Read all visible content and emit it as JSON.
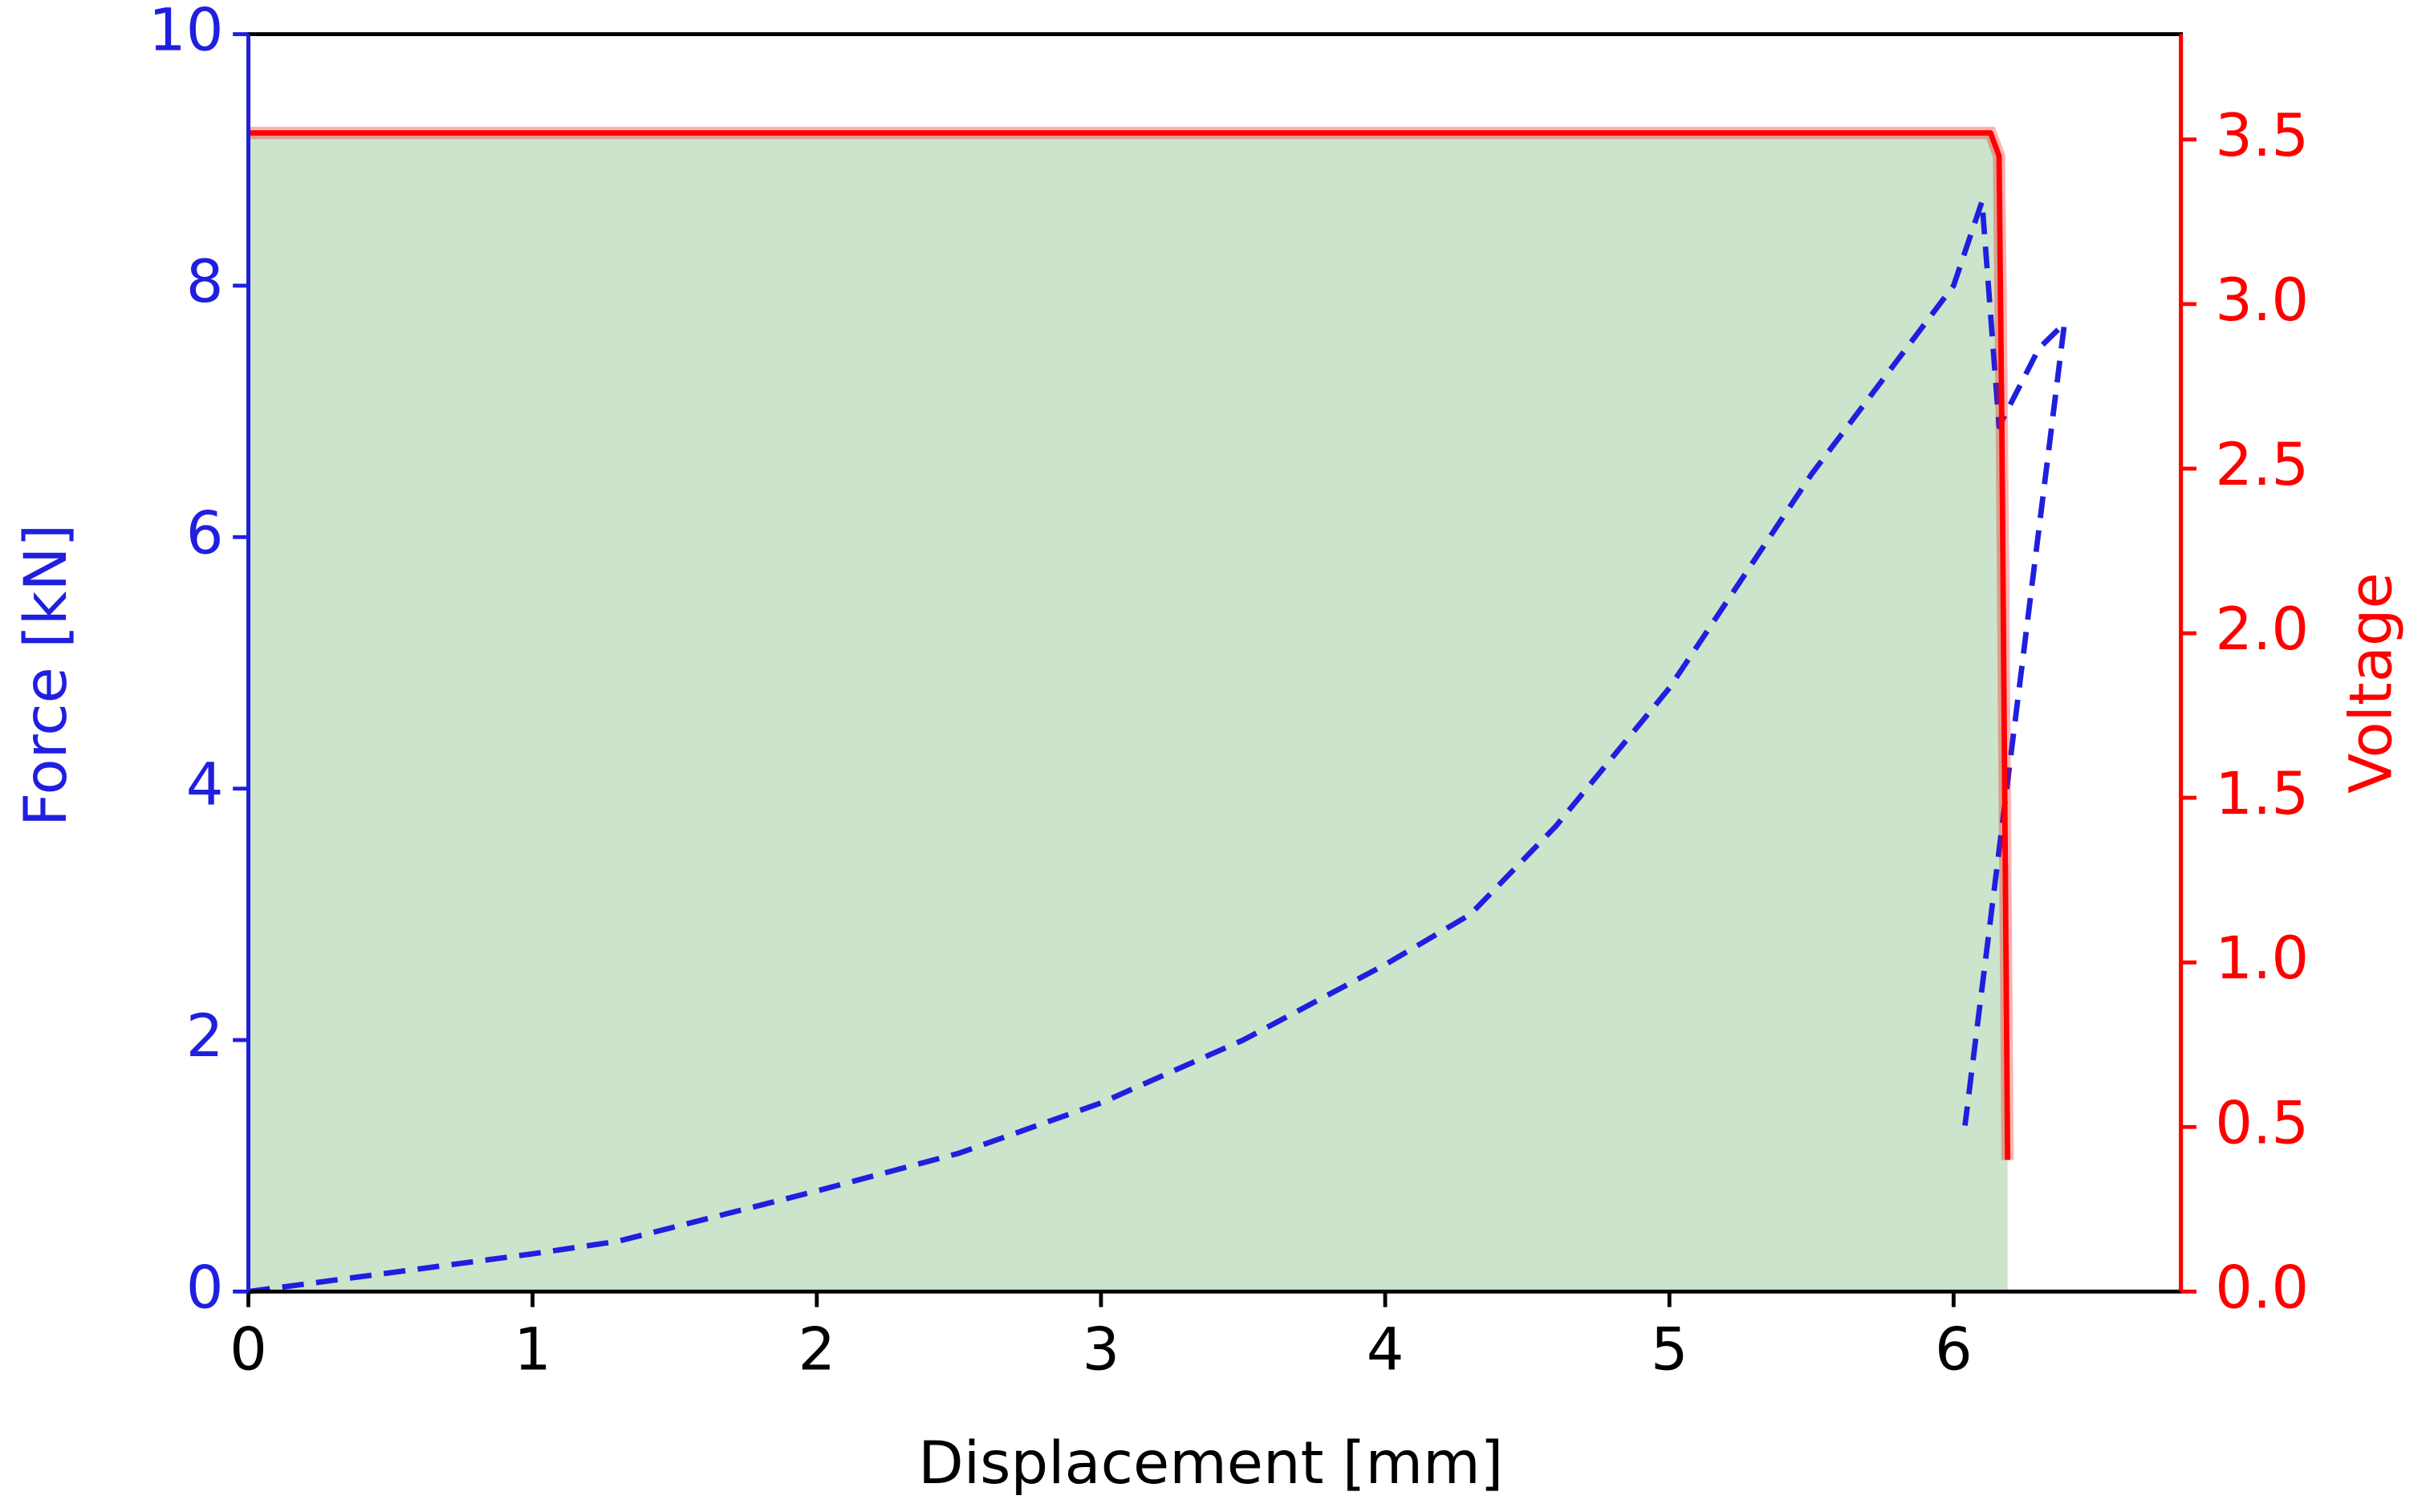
{
  "chart_data": {
    "type": "line",
    "xlabel": "Displacement [mm]",
    "ylabel": "Force [kN]",
    "y2label": "Voltage",
    "xlim": [
      0,
      6.8
    ],
    "ylim": [
      0,
      10
    ],
    "y2lim": [
      0,
      3.82
    ],
    "xticks": [
      0,
      1,
      2,
      3,
      4,
      5,
      6
    ],
    "yticks": [
      0,
      2,
      4,
      6,
      8,
      10
    ],
    "y2ticks": [
      {
        "value": 0,
        "label": "0.0"
      },
      {
        "value": 0.5,
        "label": "0.5"
      },
      {
        "value": 1,
        "label": "1.0"
      },
      {
        "value": 1.5,
        "label": "1.5"
      },
      {
        "value": 2,
        "label": "2.0"
      },
      {
        "value": 2.5,
        "label": "2.5"
      },
      {
        "value": 3,
        "label": "3.0"
      },
      {
        "value": 3.5,
        "label": "3.5"
      }
    ],
    "series": [
      {
        "color": "#1f1fe0",
        "line_style": "dashed",
        "x": [
          0,
          1,
          1.3,
          2,
          2.5,
          3,
          3.5,
          4,
          4.3,
          4.6,
          5,
          5.5,
          6,
          6.1,
          6.16,
          6.3,
          6.39,
          6.04
        ],
        "values": [
          0,
          0.3,
          0.4,
          0.8,
          1.1,
          1.5,
          2.0,
          2.6,
          3.0,
          3.7,
          4.8,
          6.5,
          8.0,
          8.67,
          6.88,
          7.5,
          7.7,
          1.32
        ]
      },
      {
        "color": "#ff0000",
        "line_style": "solid",
        "axis": "y2",
        "fill": "#cce4cc",
        "x": [
          0,
          6.13,
          6.16,
          6.17,
          6.19
        ],
        "values": [
          3.52,
          3.52,
          3.45,
          2.6,
          0.4
        ]
      }
    ]
  }
}
